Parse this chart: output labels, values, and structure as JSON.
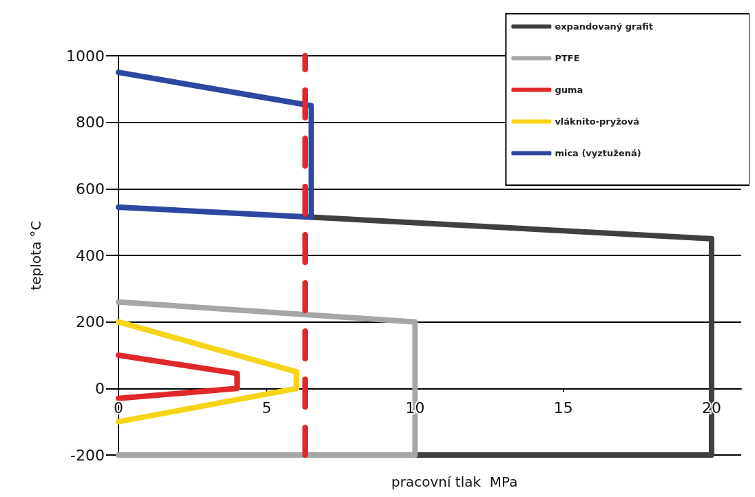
{
  "chart_data": {
    "type": "line",
    "xlabel": "pracovní tlak  MPa",
    "ylabel": "teplota °C",
    "xlim": [
      0,
      21
    ],
    "xticks": [
      0,
      5,
      10,
      15,
      20
    ],
    "ylim": [
      -200,
      1000
    ],
    "yticks": [
      -200,
      0,
      200,
      400,
      600,
      800,
      1000
    ],
    "grid": "y",
    "legend": "top right",
    "marker": "none",
    "line_style": "solid",
    "series": [
      {
        "name": "expandovaný grafit",
        "color": "#404040",
        "x": [
          6.5,
          20,
          20,
          10
        ],
        "values": [
          515,
          450,
          -200,
          -200
        ]
      },
      {
        "name": "PTFE",
        "color": "#a6a6a6",
        "x": [
          0,
          10,
          10,
          0
        ],
        "values": [
          260,
          200,
          -200,
          -200
        ]
      },
      {
        "name": "guma",
        "color": "#e0282a",
        "x": [
          0,
          4,
          4,
          0
        ],
        "values": [
          100,
          45,
          0,
          -30
        ]
      },
      {
        "name": "vláknito-pryžová",
        "color": "#f7d417",
        "x": [
          0,
          6,
          6,
          0
        ],
        "values": [
          200,
          50,
          0,
          -100
        ]
      },
      {
        "name": "mica (vyztužená)",
        "color": "#2e47a0",
        "x": [
          0,
          6.5,
          6.5,
          0
        ],
        "values": [
          950,
          850,
          515,
          545
        ]
      }
    ],
    "ref_lines": [
      {
        "axis": "x",
        "value": 6.3,
        "color": "#e0282a",
        "line_style": "dashed"
      }
    ]
  }
}
